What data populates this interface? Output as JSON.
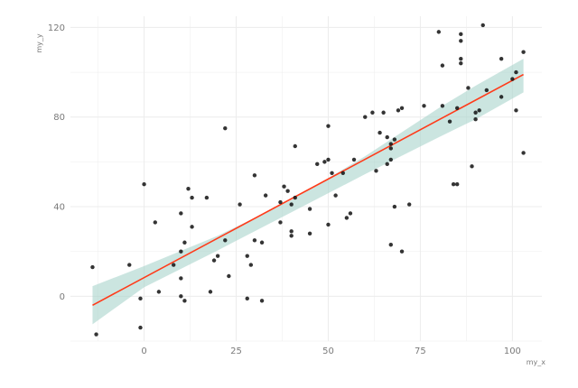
{
  "chart_data": {
    "type": "scatter",
    "xlabel": "my_x",
    "ylabel": "my_y",
    "xlim": [
      -20,
      108
    ],
    "ylim": [
      -20,
      125
    ],
    "x_ticks": [
      0,
      25,
      50,
      75,
      100
    ],
    "y_ticks": [
      0,
      40,
      80,
      120
    ],
    "grid": true,
    "points": [
      [
        -14,
        13
      ],
      [
        -13,
        -17
      ],
      [
        -4,
        14
      ],
      [
        -1,
        -14
      ],
      [
        -1,
        -1
      ],
      [
        0,
        50
      ],
      [
        3,
        33
      ],
      [
        4,
        2
      ],
      [
        8,
        14
      ],
      [
        10,
        20
      ],
      [
        10,
        37
      ],
      [
        10,
        8
      ],
      [
        10,
        0
      ],
      [
        11,
        -2
      ],
      [
        11,
        24
      ],
      [
        12,
        48
      ],
      [
        13,
        31
      ],
      [
        13,
        44
      ],
      [
        17,
        44
      ],
      [
        18,
        2
      ],
      [
        19,
        16
      ],
      [
        20,
        18
      ],
      [
        22,
        25
      ],
      [
        22,
        75
      ],
      [
        23,
        9
      ],
      [
        26,
        41
      ],
      [
        28,
        18
      ],
      [
        28,
        -1
      ],
      [
        29,
        14
      ],
      [
        30,
        25
      ],
      [
        30,
        54
      ],
      [
        32,
        -2
      ],
      [
        32,
        24
      ],
      [
        33,
        45
      ],
      [
        37,
        42
      ],
      [
        37,
        33
      ],
      [
        38,
        49
      ],
      [
        39,
        47
      ],
      [
        40,
        27
      ],
      [
        40,
        29
      ],
      [
        40,
        41
      ],
      [
        41,
        67
      ],
      [
        41,
        44
      ],
      [
        45,
        28
      ],
      [
        45,
        39
      ],
      [
        47,
        59
      ],
      [
        49,
        60
      ],
      [
        50,
        61
      ],
      [
        50,
        76
      ],
      [
        50,
        32
      ],
      [
        51,
        55
      ],
      [
        52,
        45
      ],
      [
        54,
        55
      ],
      [
        55,
        35
      ],
      [
        56,
        37
      ],
      [
        57,
        61
      ],
      [
        60,
        80
      ],
      [
        62,
        82
      ],
      [
        63,
        56
      ],
      [
        64,
        73
      ],
      [
        65,
        82
      ],
      [
        66,
        71
      ],
      [
        66,
        59
      ],
      [
        67,
        61
      ],
      [
        67,
        66
      ],
      [
        67,
        68
      ],
      [
        67,
        23
      ],
      [
        68,
        70
      ],
      [
        68,
        40
      ],
      [
        69,
        83
      ],
      [
        70,
        84
      ],
      [
        70,
        20
      ],
      [
        72,
        41
      ],
      [
        76,
        85
      ],
      [
        80,
        118
      ],
      [
        81,
        103
      ],
      [
        81,
        85
      ],
      [
        83,
        78
      ],
      [
        84,
        50
      ],
      [
        85,
        50
      ],
      [
        85,
        84
      ],
      [
        86,
        117
      ],
      [
        86,
        114
      ],
      [
        86,
        104
      ],
      [
        86,
        106
      ],
      [
        88,
        93
      ],
      [
        89,
        58
      ],
      [
        90,
        79
      ],
      [
        90,
        82
      ],
      [
        91,
        83
      ],
      [
        92,
        121
      ],
      [
        93,
        92
      ],
      [
        97,
        106
      ],
      [
        97,
        89
      ],
      [
        100,
        97
      ],
      [
        101,
        100
      ],
      [
        101,
        83
      ],
      [
        103,
        109
      ],
      [
        103,
        64
      ]
    ],
    "regression": {
      "x_start": -14,
      "y_start": -4,
      "x_end": 103,
      "y_end": 99,
      "band": [
        [
          -14,
          4.5,
          -12.5
        ],
        [
          0,
          13.5,
          4
        ],
        [
          20,
          27,
          20.5
        ],
        [
          40,
          43,
          37.5
        ],
        [
          60,
          62.5,
          54.5
        ],
        [
          80,
          84,
          71
        ],
        [
          90,
          94,
          79
        ],
        [
          103,
          106,
          91
        ]
      ]
    },
    "colors": {
      "points": "#111111",
      "line": "#ff3b1a",
      "band": "#a9d3cc",
      "grid": "#ececec"
    }
  }
}
